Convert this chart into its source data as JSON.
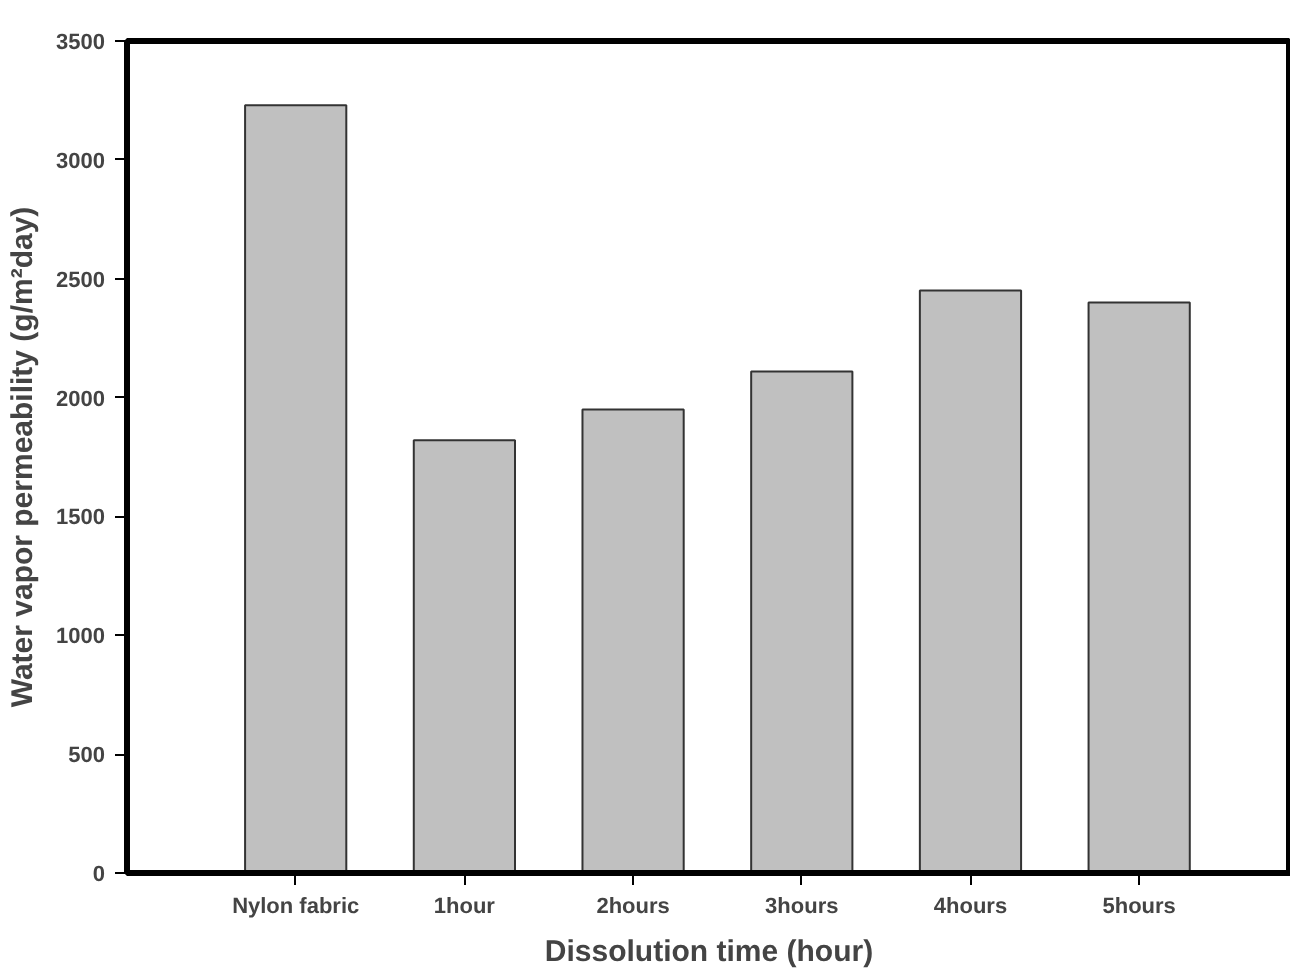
{
  "chart_data": {
    "type": "bar",
    "xlabel": "Dissolution time (hour)",
    "ylabel": "Water vapor permeability (g/m²day)",
    "categories": [
      "Nylon fabric",
      "1hour",
      "2hours",
      "3hours",
      "4hours",
      "5hours"
    ],
    "values": [
      3230,
      1820,
      1950,
      2110,
      2450,
      2400
    ],
    "color": "#c0c0c0",
    "ylim": [
      0,
      3500
    ],
    "yticks": [
      0,
      500,
      1000,
      1500,
      2000,
      2500,
      3000,
      3500
    ],
    "grid": false
  }
}
